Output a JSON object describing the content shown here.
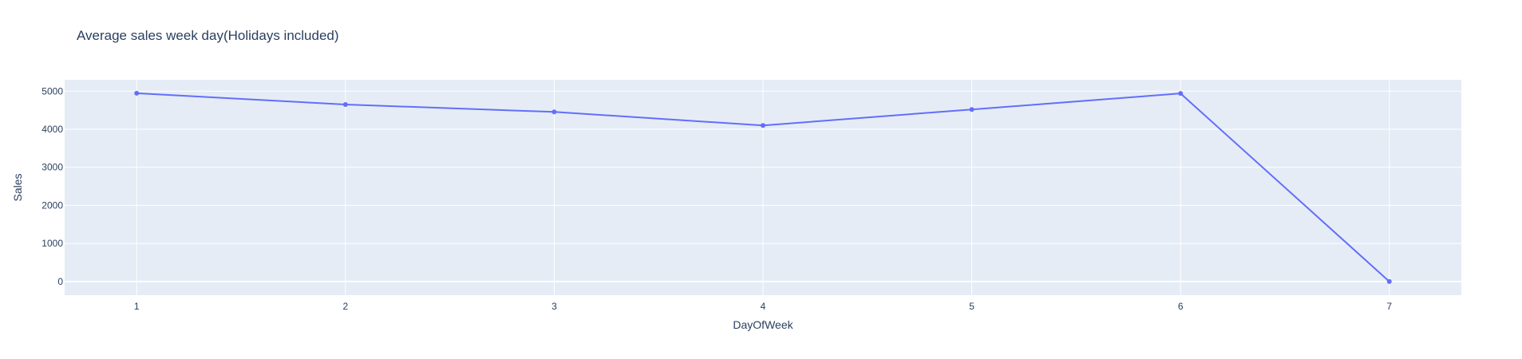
{
  "chart_data": {
    "type": "line",
    "title": "Average sales week day(Holidays included)",
    "xlabel": "DayOfWeek",
    "ylabel": "Sales",
    "x": [
      1,
      2,
      3,
      4,
      5,
      6,
      7
    ],
    "y": [
      4946,
      4650,
      4455,
      4100,
      4520,
      4940,
      0
    ],
    "xticks": [
      "1",
      "2",
      "3",
      "4",
      "5",
      "6",
      "7"
    ],
    "yticks": [
      "0",
      "1000",
      "2000",
      "3000",
      "4000",
      "5000"
    ],
    "ytick_values": [
      0,
      1000,
      2000,
      3000,
      4000,
      5000
    ],
    "xlim": [
      0.655,
      7.345
    ],
    "ylim": [
      -360,
      5300
    ],
    "grid": true,
    "colors": {
      "line": "#636efa",
      "plot_bg": "#e5ecf6",
      "grid": "#ffffff",
      "text": "#2a3f5f"
    }
  }
}
